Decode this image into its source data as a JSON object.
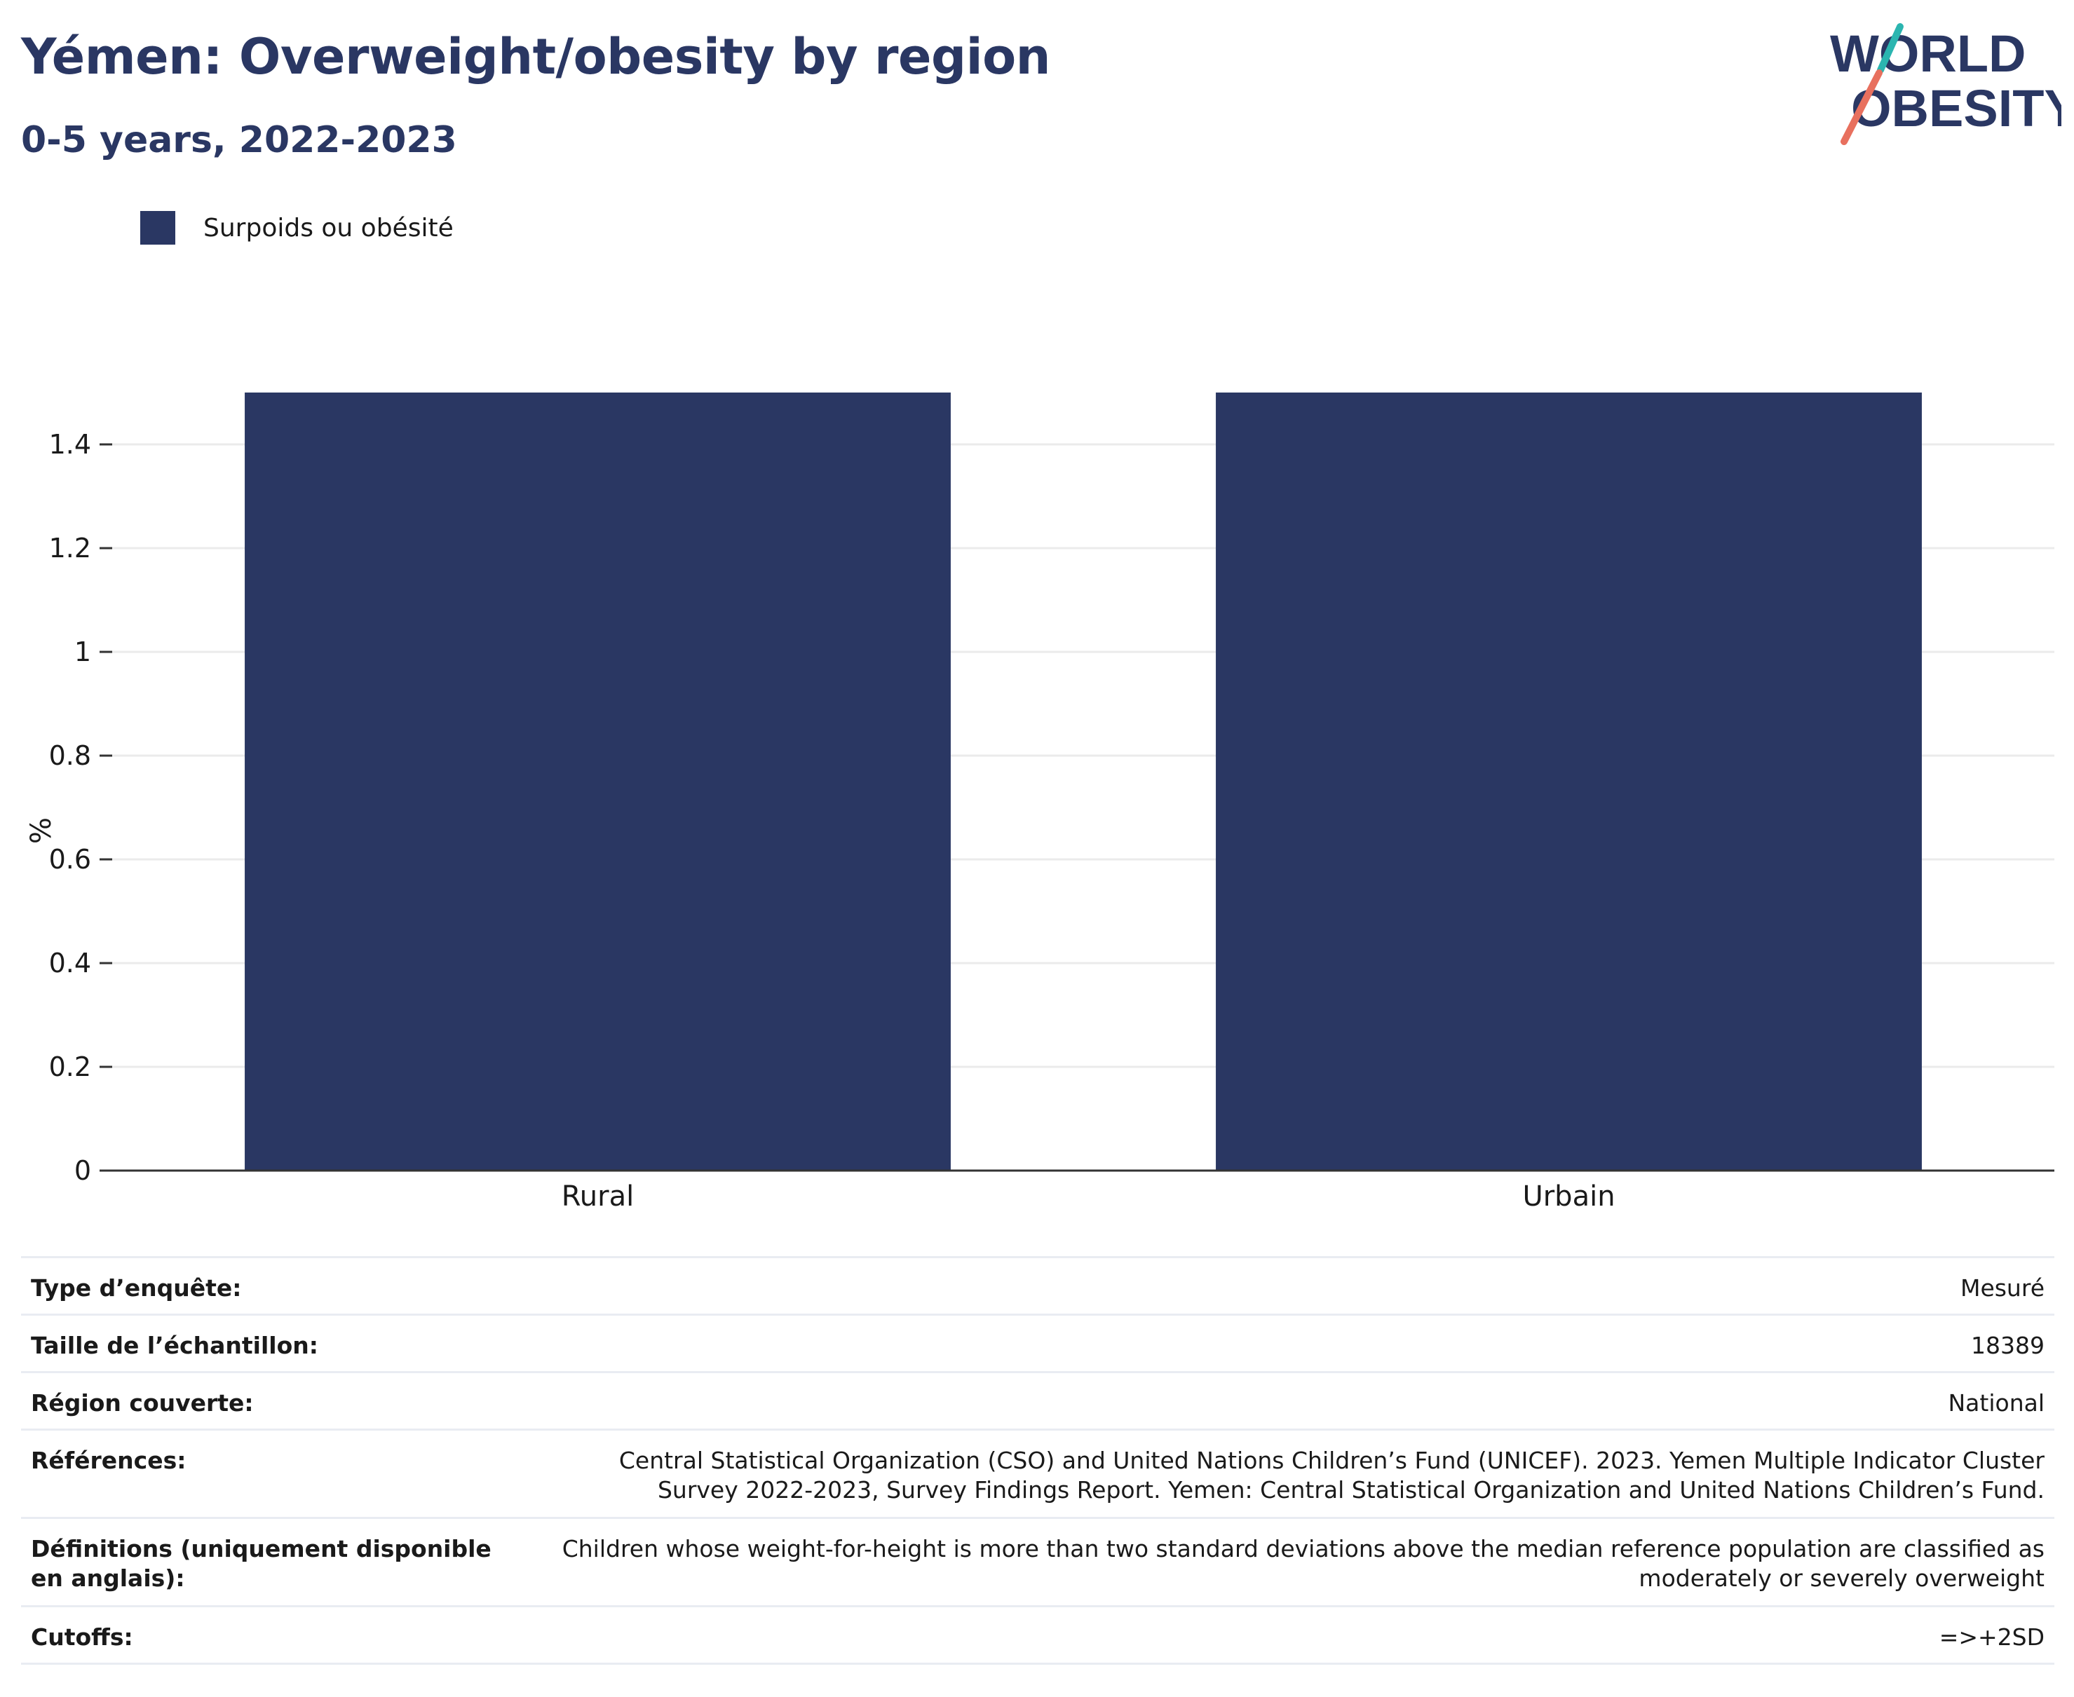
{
  "header": {
    "title": "Yémen: Overweight/obesity by region",
    "subtitle": "0-5 years, 2022-2023"
  },
  "logo": {
    "line1": "WORLD",
    "line2": "OBESITY",
    "colors": {
      "text": "#2a3763",
      "slash_teal": "#2bb5b0",
      "slash_coral": "#e8705e"
    }
  },
  "legend": {
    "items": [
      {
        "label": "Surpoids ou obésité",
        "color": "#2a3763"
      }
    ]
  },
  "chart_data": {
    "type": "bar",
    "categories": [
      "Rural",
      "Urbain"
    ],
    "series": [
      {
        "name": "Surpoids ou obésité",
        "values": [
          1.5,
          1.5
        ],
        "color": "#2a3763"
      }
    ],
    "ylabel": "%",
    "xlabel": "",
    "ylim": [
      0,
      1.5
    ],
    "yticks": [
      0,
      0.2,
      0.4,
      0.6,
      0.8,
      1,
      1.2,
      1.4
    ],
    "ytick_labels": [
      "0",
      "0.2",
      "0.4",
      "0.6",
      "0.8",
      "1",
      "1.2",
      "1.4"
    ],
    "grid": true
  },
  "details": [
    {
      "label": "Type d’enquête:",
      "value": "Mesuré"
    },
    {
      "label": "Taille de l’échantillon:",
      "value": "18389"
    },
    {
      "label": "Région couverte:",
      "value": "National"
    },
    {
      "label": "Références:",
      "value": "Central Statistical Organization (CSO) and United Nations Children’s Fund (UNICEF). 2023. Yemen Multiple Indicator Cluster Survey 2022-2023, Survey Findings Report. Yemen: Central Statistical Organization and United Nations Children’s Fund."
    },
    {
      "label": "Définitions (uniquement disponible en anglais):",
      "value": "Children whose weight-for-height is more than two standard deviations above the median reference population are classified as moderately or severely overweight"
    },
    {
      "label": "Cutoffs:",
      "value": "=>+2SD"
    }
  ]
}
